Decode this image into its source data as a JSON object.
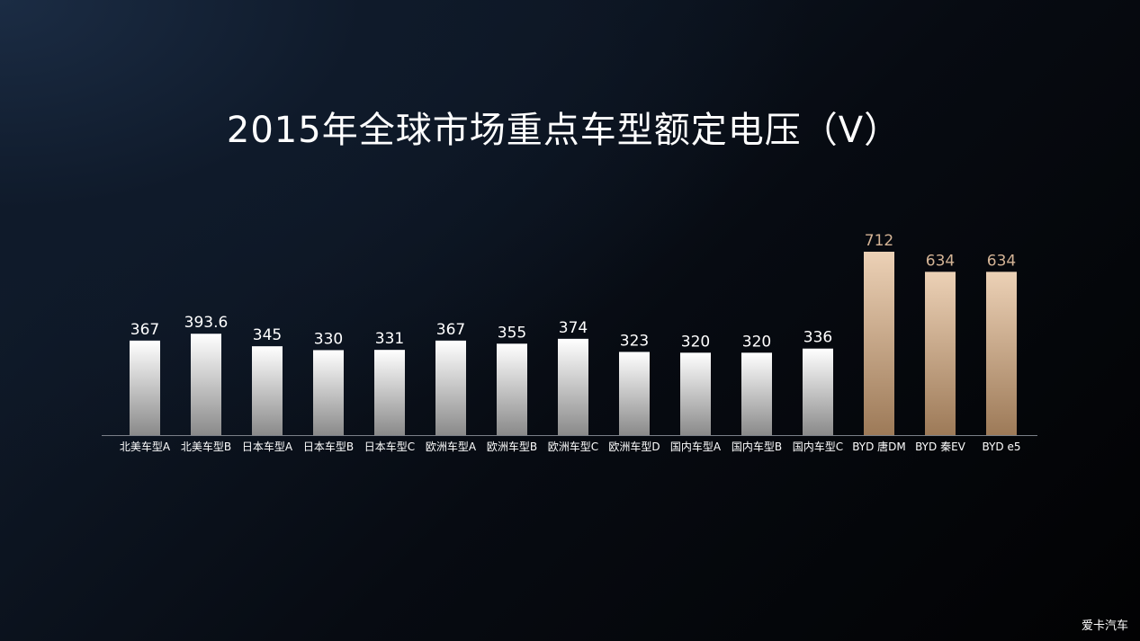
{
  "chart_data": {
    "type": "bar",
    "title": "2015年全球市场重点车型额定电压（V）",
    "xlabel": "",
    "ylabel": "",
    "ylim": [
      0,
      800
    ],
    "grid": false,
    "legend": "none",
    "categories": [
      "北美车型A",
      "北美车型B",
      "日本车型A",
      "日本车型B",
      "日本车型C",
      "欧洲车型A",
      "欧洲车型B",
      "欧洲车型C",
      "欧洲车型D",
      "国内车型A",
      "国内车型B",
      "国内车型C",
      "BYD 唐DM",
      "BYD 秦EV",
      "BYD e5"
    ],
    "values": [
      367,
      393.6,
      345,
      330,
      331,
      367,
      355,
      374,
      323,
      320,
      320,
      336,
      712,
      634,
      634
    ],
    "value_labels": [
      "367",
      "393.6",
      "345",
      "330",
      "331",
      "367",
      "355",
      "374",
      "323",
      "320",
      "320",
      "336",
      "712",
      "634",
      "634"
    ],
    "highlighted_categories": [
      "BYD 唐DM",
      "BYD 秦EV",
      "BYD e5"
    ]
  },
  "colors": {
    "standard_bar_top": "#ffffff",
    "standard_bar_bottom": "#8a8a8a",
    "highlight_bar_top": "#ecd1b6",
    "highlight_bar_bottom": "#9d7a58",
    "standard_label": "#ffffff",
    "highlight_label": "#d4b496",
    "axis_line": "#7a7f88",
    "category_label": "#ffffff"
  },
  "watermark": {
    "text": "爱卡汽车"
  }
}
